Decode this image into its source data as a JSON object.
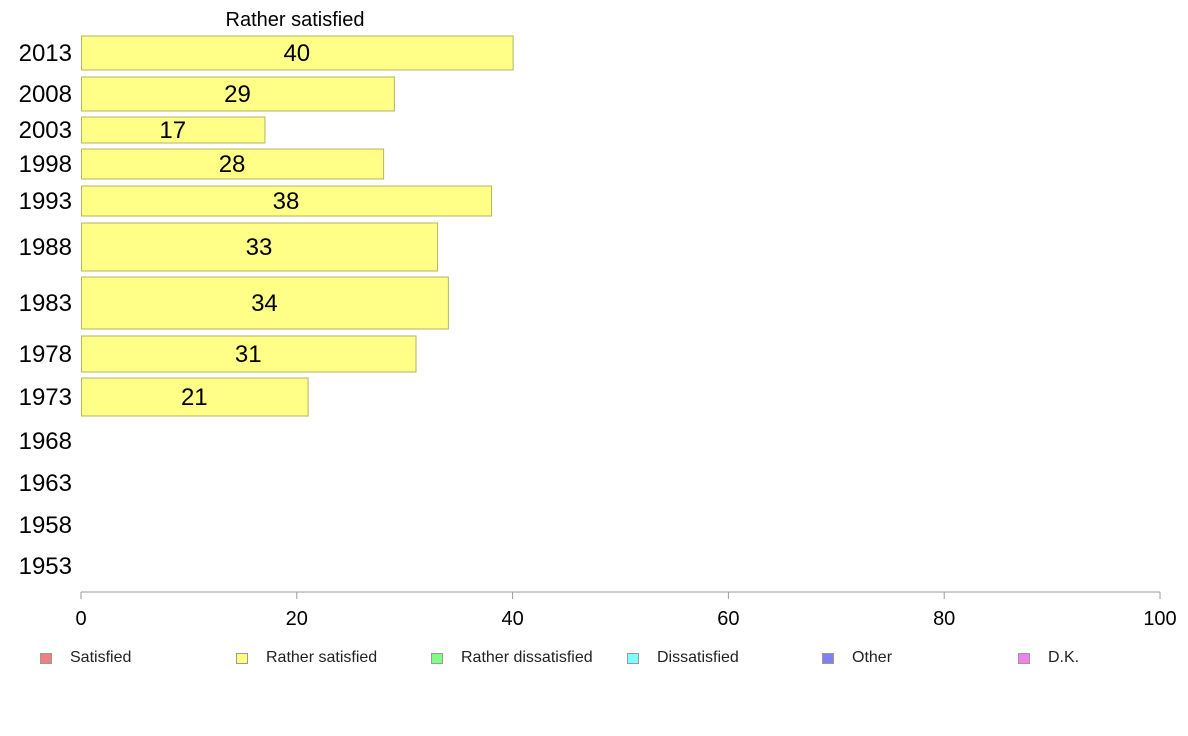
{
  "chart_data": {
    "type": "bar",
    "orientation": "horizontal",
    "title": "Rather satisfied",
    "categories": [
      "2013",
      "2008",
      "2003",
      "1998",
      "1993",
      "1988",
      "1983",
      "1978",
      "1973",
      "1968",
      "1963",
      "1958",
      "1953"
    ],
    "series": [
      {
        "name": "Rather satisfied",
        "color": "#ffff88",
        "values": [
          40,
          29,
          17,
          28,
          38,
          33,
          34,
          31,
          21,
          null,
          null,
          null,
          null
        ]
      }
    ],
    "xlim": [
      0,
      100
    ],
    "xticks": [
      "0",
      "20",
      "40",
      "60",
      "80",
      "100"
    ],
    "grid": false,
    "legend_position": "bottom"
  },
  "legend": [
    {
      "label": "Satisfied",
      "color": "#f08080"
    },
    {
      "label": "Rather satisfied",
      "color": "#ffff80"
    },
    {
      "label": "Rather dissatisfied",
      "color": "#80ff80"
    },
    {
      "label": "Dissatisfied",
      "color": "#80ffff"
    },
    {
      "label": "Other",
      "color": "#8080f0"
    },
    {
      "label": "D.K.",
      "color": "#f080f0"
    }
  ]
}
